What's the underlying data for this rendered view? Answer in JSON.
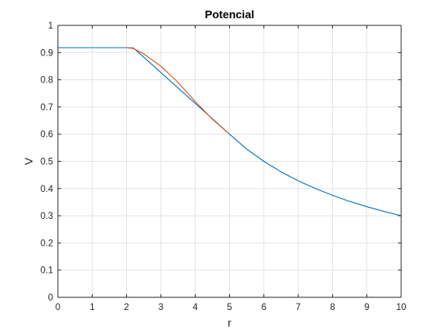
{
  "chart_data": {
    "type": "line",
    "title": "Potencial",
    "xlabel": "r",
    "ylabel": "V",
    "xlim": [
      0,
      10
    ],
    "ylim": [
      0,
      1
    ],
    "x_ticks": [
      0,
      1,
      2,
      3,
      4,
      5,
      6,
      7,
      8,
      9,
      10
    ],
    "y_ticks": [
      0,
      0.1,
      0.2,
      0.3,
      0.4,
      0.5,
      0.6,
      0.7,
      0.8,
      0.9,
      1
    ],
    "grid": true,
    "series": [
      {
        "color": "#0072BD",
        "x": [
          0,
          1,
          2,
          2.2,
          5,
          5.5,
          6,
          6.5,
          7,
          7.5,
          8,
          8.5,
          9,
          9.5,
          10
        ],
        "y": [
          0.918,
          0.918,
          0.918,
          0.917,
          0.6,
          0.545,
          0.5,
          0.4615,
          0.4286,
          0.4,
          0.375,
          0.3529,
          0.3333,
          0.3158,
          0.3
        ]
      },
      {
        "color": "#D95319",
        "x": [
          2,
          2.2,
          2.5,
          3,
          3.5,
          4,
          4.5,
          5
        ],
        "y": [
          0.918,
          0.915,
          0.895,
          0.85,
          0.79,
          0.72,
          0.655,
          0.6
        ]
      }
    ]
  }
}
